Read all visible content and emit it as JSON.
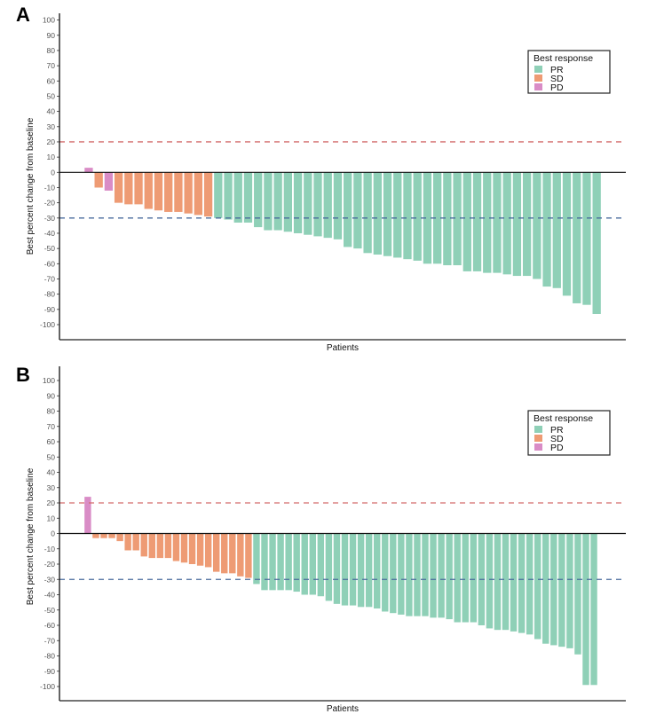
{
  "colors": {
    "PR": "#8fd0b7",
    "SD": "#ee9b74",
    "PD": "#d98cc6",
    "ref_upper": "#d46b6b",
    "ref_lower": "#4a6b9c"
  },
  "chart_data": [
    {
      "panel": "A",
      "type": "bar",
      "title": "",
      "xlabel": "Patients",
      "ylabel": "Best percent change from baseline",
      "ylim": [
        -110,
        105
      ],
      "yticks": [
        100,
        90,
        80,
        70,
        60,
        50,
        40,
        30,
        20,
        10,
        0,
        -10,
        -20,
        -30,
        -40,
        -50,
        -60,
        -70,
        -80,
        -90,
        -100
      ],
      "reference_lines": [
        20,
        -30
      ],
      "legend": {
        "title": "Best response",
        "entries": [
          "PR",
          "SD",
          "PD"
        ],
        "position": "top-right"
      },
      "grid": false,
      "categories_response": [
        "PD",
        "SD",
        "PD",
        "SD",
        "SD",
        "SD",
        "SD",
        "SD",
        "SD",
        "SD",
        "SD",
        "SD",
        "SD",
        "PR",
        "PR",
        "PR",
        "PR",
        "PR",
        "PR",
        "PR",
        "PR",
        "PR",
        "PR",
        "PR",
        "PR",
        "PR",
        "PR",
        "PR",
        "PR",
        "PR",
        "PR",
        "PR",
        "PR",
        "PR",
        "PR",
        "PR",
        "PR",
        "PR",
        "PR",
        "PR",
        "PR",
        "PR",
        "PR",
        "PR",
        "PR",
        "PR",
        "PR",
        "PR",
        "PR",
        "PR",
        "PR",
        "PR"
      ],
      "values": [
        3,
        -10,
        -12,
        -20,
        -21,
        -21,
        -24,
        -25,
        -26,
        -26,
        -27,
        -28,
        -29,
        -30,
        -31,
        -33,
        -33,
        -36,
        -38,
        -38,
        -39,
        -40,
        -41,
        -42,
        -43,
        -44,
        -49,
        -50,
        -53,
        -54,
        -55,
        -56,
        -57,
        -58,
        -60,
        -60,
        -61,
        -61,
        -65,
        -65,
        -66,
        -66,
        -67,
        -68,
        -68,
        -70,
        -75,
        -76,
        -81,
        -86,
        -87,
        -93
      ]
    },
    {
      "panel": "B",
      "type": "bar",
      "title": "",
      "xlabel": "Patients",
      "ylabel": "Best percent change from baseline",
      "ylim": [
        -110,
        105
      ],
      "yticks": [
        100,
        90,
        80,
        70,
        60,
        50,
        40,
        30,
        20,
        10,
        0,
        -10,
        -20,
        -30,
        -40,
        -50,
        -60,
        -70,
        -80,
        -90,
        -100
      ],
      "reference_lines": [
        20,
        -30
      ],
      "legend": {
        "title": "Best response",
        "entries": [
          "PR",
          "SD",
          "PD"
        ],
        "position": "top-right"
      },
      "grid": false,
      "categories_response": [
        "PD",
        "SD",
        "SD",
        "SD",
        "SD",
        "SD",
        "SD",
        "SD",
        "SD",
        "SD",
        "SD",
        "SD",
        "SD",
        "SD",
        "SD",
        "SD",
        "SD",
        "SD",
        "SD",
        "SD",
        "SD",
        "PR",
        "PR",
        "PR",
        "PR",
        "PR",
        "PR",
        "PR",
        "PR",
        "PR",
        "PR",
        "PR",
        "PR",
        "PR",
        "PR",
        "PR",
        "PR",
        "PR",
        "PR",
        "PR",
        "PR",
        "PR",
        "PR",
        "PR",
        "PR",
        "PR",
        "PR",
        "PR",
        "PR",
        "PR",
        "PR",
        "PR",
        "PR",
        "PR",
        "PR",
        "PR",
        "PR",
        "PR",
        "PR",
        "PR",
        "PR",
        "PR",
        "PR",
        "PR"
      ],
      "values": [
        24,
        -3,
        -3,
        -3,
        -5,
        -11,
        -11,
        -15,
        -16,
        -16,
        -16,
        -18,
        -19,
        -20,
        -21,
        -22,
        -25,
        -26,
        -26,
        -28,
        -29,
        -33,
        -37,
        -37,
        -37,
        -37,
        -38,
        -40,
        -40,
        -41,
        -44,
        -46,
        -47,
        -47,
        -48,
        -48,
        -49,
        -51,
        -52,
        -53,
        -54,
        -54,
        -54,
        -55,
        -55,
        -56,
        -58,
        -58,
        -58,
        -60,
        -62,
        -63,
        -63,
        -64,
        -65,
        -66,
        -69,
        -72,
        -73,
        -74,
        -75,
        -79,
        -99,
        -99
      ]
    }
  ]
}
